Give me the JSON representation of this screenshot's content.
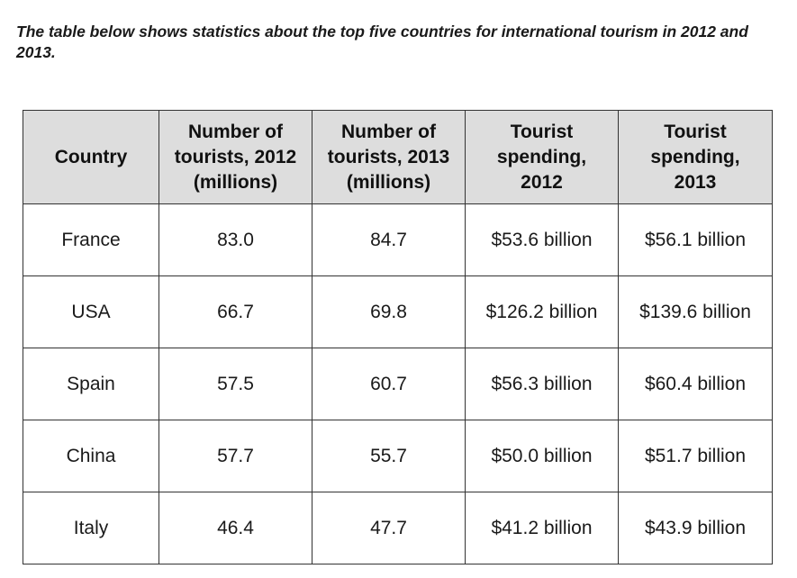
{
  "intro": "The table below shows statistics about the top five countries for international tourism in 2012 and 2013.",
  "table": {
    "headers": [
      [
        "Country"
      ],
      [
        "Number of",
        "tourists, 2012",
        "(millions)"
      ],
      [
        "Number of",
        "tourists, 2013",
        "(millions)"
      ],
      [
        "Tourist",
        "spending,",
        "2012"
      ],
      [
        "Tourist",
        "spending,",
        "2013"
      ]
    ],
    "rows": [
      [
        "France",
        "83.0",
        "84.7",
        "$53.6 billion",
        "$56.1 billion"
      ],
      [
        "USA",
        "66.7",
        "69.8",
        "$126.2 billion",
        "$139.6 billion"
      ],
      [
        "Spain",
        "57.5",
        "60.7",
        "$56.3 billion",
        "$60.4 billion"
      ],
      [
        "China",
        "57.7",
        "55.7",
        "$50.0 billion",
        "$51.7 billion"
      ],
      [
        "Italy",
        "46.4",
        "47.7",
        "$41.2 billion",
        "$43.9 billion"
      ]
    ]
  },
  "colors": {
    "header_background": "#dddddd",
    "border": "#333333",
    "text": "#111111"
  }
}
